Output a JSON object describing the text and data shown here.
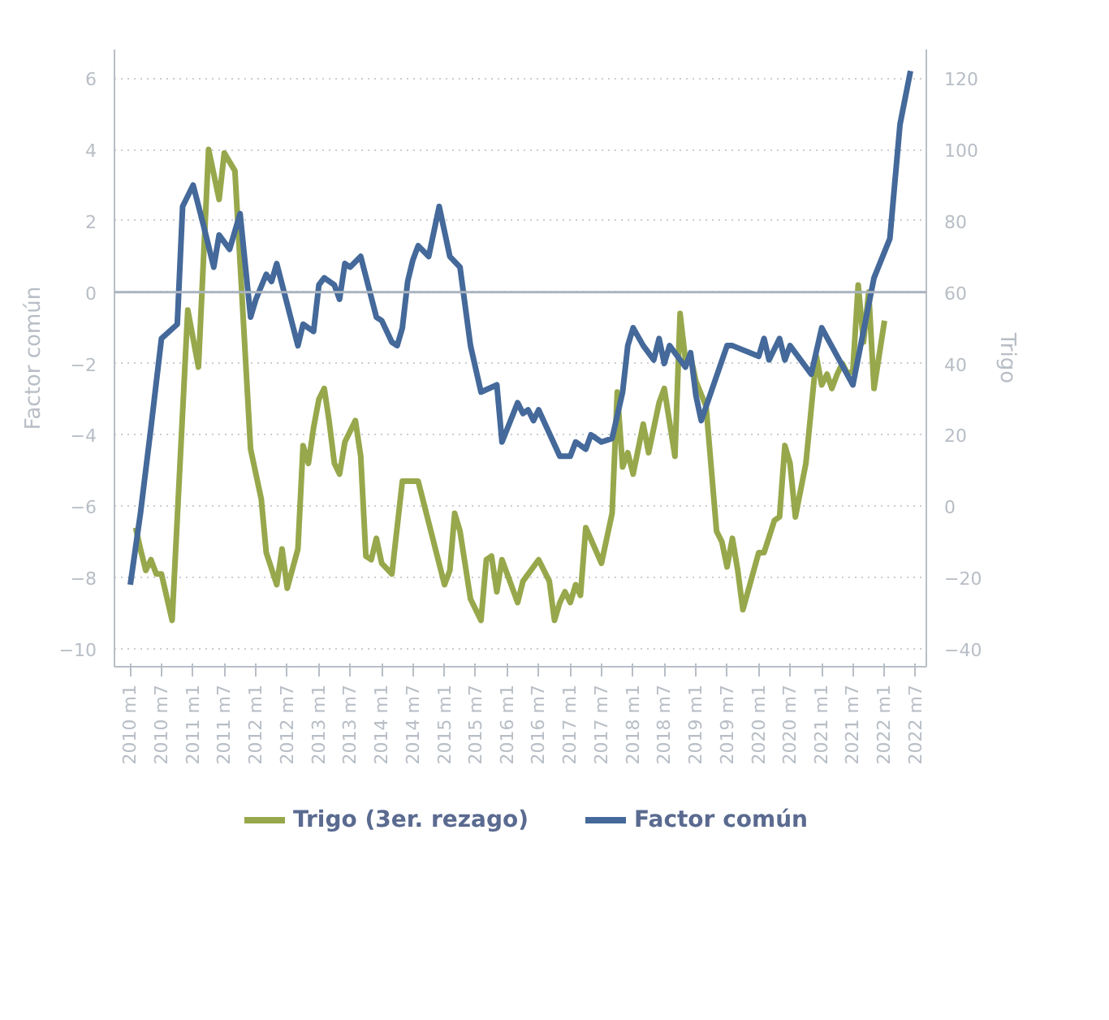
{
  "chart_data": {
    "type": "line",
    "ylabel": "Factor común",
    "y2label": "Trigo",
    "xlim": [
      "2009-10",
      "2022-09"
    ],
    "ylim": [
      -10.5,
      6.8
    ],
    "y2lim": [
      -45,
      128
    ],
    "yticks": [
      -10,
      -8,
      -6,
      -4,
      -2,
      0,
      2,
      4,
      6
    ],
    "y2ticks": [
      -40,
      -20,
      0,
      20,
      40,
      60,
      80,
      100,
      120
    ],
    "xticks": [
      {
        "value": "2010-01",
        "label": "2010 m1"
      },
      {
        "value": "2010-07",
        "label": "2010 m7"
      },
      {
        "value": "2011-01",
        "label": "2011 m1"
      },
      {
        "value": "2011-07",
        "label": "2011 m7"
      },
      {
        "value": "2012-01",
        "label": "2012 m1"
      },
      {
        "value": "2012-07",
        "label": "2012 m7"
      },
      {
        "value": "2013-01",
        "label": "2013 m1"
      },
      {
        "value": "2013-07",
        "label": "2013 m7"
      },
      {
        "value": "2014-01",
        "label": "2014 m1"
      },
      {
        "value": "2014-07",
        "label": "2014 m7"
      },
      {
        "value": "2015-01",
        "label": "2015 m1"
      },
      {
        "value": "2015-07",
        "label": "2015 m7"
      },
      {
        "value": "2016-01",
        "label": "2016 m1"
      },
      {
        "value": "2016-07",
        "label": "2016 m7"
      },
      {
        "value": "2017-01",
        "label": "2017 m1"
      },
      {
        "value": "2017-07",
        "label": "2017 m7"
      },
      {
        "value": "2018-01",
        "label": "2018 m1"
      },
      {
        "value": "2018-07",
        "label": "2018 m7"
      },
      {
        "value": "2019-01",
        "label": "2019 m1"
      },
      {
        "value": "2019-07",
        "label": "2019 m7"
      },
      {
        "value": "2020-01",
        "label": "2020 m1"
      },
      {
        "value": "2020-07",
        "label": "2020 m7"
      },
      {
        "value": "2021-01",
        "label": "2021 m1"
      },
      {
        "value": "2021-07",
        "label": "2021 m7"
      },
      {
        "value": "2022-01",
        "label": "2022 m1"
      },
      {
        "value": "2022-07",
        "label": "2022 m7"
      }
    ],
    "grid": "y",
    "legend": "bottom",
    "line_style": "solid",
    "ref_lines": [
      {
        "axis": "y",
        "value": 0,
        "label": null,
        "color": "#aab4bf"
      }
    ],
    "series": [
      {
        "name": "Trigo (3er. rezago)",
        "color": "#97a84c",
        "axis": "y2",
        "x": [
          "2010-02",
          "2010-03",
          "2010-04",
          "2010-05",
          "2010-06",
          "2010-07",
          "2010-09",
          "2010-12",
          "2011-02",
          "2011-04",
          "2011-06",
          "2011-07",
          "2011-09",
          "2011-12",
          "2012-02",
          "2012-03",
          "2012-05",
          "2012-06",
          "2012-07",
          "2012-09",
          "2012-10",
          "2012-11",
          "2012-12",
          "2013-01",
          "2013-02",
          "2013-03",
          "2013-04",
          "2013-05",
          "2013-06",
          "2013-08",
          "2013-09",
          "2013-10",
          "2013-11",
          "2013-12",
          "2014-01",
          "2014-03",
          "2014-05",
          "2014-08",
          "2015-01",
          "2015-02",
          "2015-03",
          "2015-04",
          "2015-06",
          "2015-08",
          "2015-09",
          "2015-10",
          "2015-11",
          "2015-12",
          "2016-03",
          "2016-04",
          "2016-07",
          "2016-09",
          "2016-10",
          "2016-11",
          "2016-12",
          "2017-01",
          "2017-02",
          "2017-03",
          "2017-04",
          "2017-07",
          "2017-09",
          "2017-10",
          "2017-11",
          "2017-12",
          "2018-01",
          "2018-03",
          "2018-04",
          "2018-06",
          "2018-07",
          "2018-09",
          "2018-10",
          "2018-11",
          "2018-12",
          "2019-01",
          "2019-03",
          "2019-05",
          "2019-06",
          "2019-07",
          "2019-08",
          "2019-09",
          "2019-10",
          "2020-01",
          "2020-02",
          "2020-04",
          "2020-05",
          "2020-06",
          "2020-07",
          "2020-08",
          "2020-10",
          "2020-12",
          "2021-01",
          "2021-02",
          "2021-03",
          "2021-04",
          "2021-05",
          "2021-06",
          "2021-07",
          "2021-08",
          "2021-09",
          "2021-10",
          "2021-11",
          "2022-01"
        ],
        "values": [
          -6,
          -12,
          -18,
          -15,
          -19,
          -19,
          -32,
          55,
          39,
          100,
          86,
          99,
          94,
          16,
          2,
          -13,
          -22,
          -12,
          -23,
          -12,
          17,
          12,
          22,
          30,
          33,
          24,
          12,
          9,
          18,
          24,
          14,
          -14,
          -15,
          -9,
          -16,
          -19,
          7,
          7,
          -22,
          -18,
          -2,
          -7,
          -26,
          -32,
          -15,
          -14,
          -24,
          -15,
          -27,
          -21,
          -15,
          -21,
          -32,
          -27,
          -24,
          -27,
          -22,
          -25,
          -6,
          -16,
          -2,
          32,
          11,
          15,
          9,
          23,
          15,
          29,
          33,
          14,
          54,
          41,
          42,
          35,
          28,
          -7,
          -10,
          -17,
          -9,
          -18,
          -29,
          -13,
          -13,
          -4,
          -3,
          17,
          12,
          -3,
          12,
          42,
          34,
          37,
          33,
          37,
          40,
          37,
          38,
          62,
          46,
          60,
          33,
          52
        ]
      },
      {
        "name": "Factor común",
        "color": "#44699a",
        "x": [
          "2010-01",
          "2010-03",
          "2010-05",
          "2010-07",
          "2010-10",
          "2010-11",
          "2011-01",
          "2011-03",
          "2011-05",
          "2011-06",
          "2011-08",
          "2011-10",
          "2011-12",
          "2012-01",
          "2012-03",
          "2012-04",
          "2012-05",
          "2012-09",
          "2012-10",
          "2012-12",
          "2013-01",
          "2013-02",
          "2013-04",
          "2013-05",
          "2013-06",
          "2013-07",
          "2013-09",
          "2013-12",
          "2014-01",
          "2014-03",
          "2014-04",
          "2014-05",
          "2014-06",
          "2014-07",
          "2014-08",
          "2014-10",
          "2014-12",
          "2015-02",
          "2015-04",
          "2015-06",
          "2015-08",
          "2015-11",
          "2015-12",
          "2016-03",
          "2016-04",
          "2016-05",
          "2016-06",
          "2016-07",
          "2016-11",
          "2017-01",
          "2017-02",
          "2017-04",
          "2017-05",
          "2017-07",
          "2017-09",
          "2017-11",
          "2017-12",
          "2018-01",
          "2018-03",
          "2018-05",
          "2018-06",
          "2018-07",
          "2018-08",
          "2018-11",
          "2018-12",
          "2019-01",
          "2019-02",
          "2019-07",
          "2019-08",
          "2020-01",
          "2020-02",
          "2020-03",
          "2020-05",
          "2020-06",
          "2020-07",
          "2020-11",
          "2021-01",
          "2021-07",
          "2021-11",
          "2022-02",
          "2022-04",
          "2022-06"
        ],
        "values": [
          -8.2,
          -6.2,
          -3.8,
          -1.3,
          -0.9,
          2.4,
          3.0,
          1.9,
          0.7,
          1.6,
          1.2,
          2.2,
          -0.7,
          -0.2,
          0.5,
          0.3,
          0.8,
          -1.5,
          -0.9,
          -1.1,
          0.2,
          0.4,
          0.2,
          -0.2,
          0.8,
          0.7,
          1.0,
          -0.7,
          -0.8,
          -1.4,
          -1.5,
          -1.0,
          0.3,
          0.9,
          1.3,
          1.0,
          2.4,
          1.0,
          0.7,
          -1.5,
          -2.8,
          -2.6,
          -4.2,
          -3.1,
          -3.4,
          -3.3,
          -3.6,
          -3.3,
          -4.6,
          -4.6,
          -4.2,
          -4.4,
          -4.0,
          -4.2,
          -4.1,
          -2.8,
          -1.5,
          -1.0,
          -1.5,
          -1.9,
          -1.3,
          -2.0,
          -1.5,
          -2.1,
          -1.7,
          -2.9,
          -3.6,
          -1.5,
          -1.5,
          -1.8,
          -1.3,
          -1.9,
          -1.3,
          -1.9,
          -1.5,
          -2.3,
          -1.0,
          -2.6,
          0.4,
          1.5,
          4.7,
          6.2
        ]
      }
    ]
  }
}
